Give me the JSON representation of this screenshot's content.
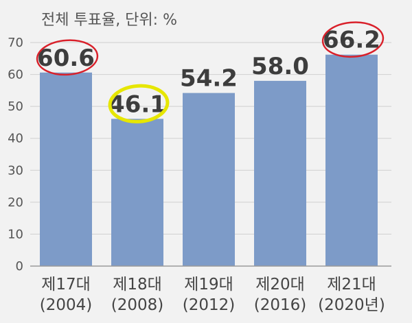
{
  "chart_data": {
    "type": "bar",
    "title": "",
    "unit_note": "전체 투표율, 단위: %",
    "xlabel": "",
    "ylabel": "",
    "ylim": [
      0,
      70
    ],
    "yticks": [
      0,
      10,
      20,
      30,
      40,
      50,
      60,
      70
    ],
    "grid": true,
    "categories": [
      [
        "제17대",
        "(2004)"
      ],
      [
        "제18대",
        "(2008)"
      ],
      [
        "제19대",
        "(2012)"
      ],
      [
        "제20대",
        "(2016)"
      ],
      [
        "제21대",
        "(2020년)"
      ]
    ],
    "values": [
      60.6,
      46.1,
      54.2,
      58.0,
      66.2
    ],
    "value_labels": [
      "60.6",
      "46.1",
      "54.2",
      "58.0",
      "66.2"
    ],
    "bar_color": "#7d9bc8",
    "highlights": [
      {
        "index": 0,
        "color": "#d9202a"
      },
      {
        "index": 1,
        "color": "#e6e600"
      },
      {
        "index": 4,
        "color": "#d9202a"
      }
    ]
  }
}
